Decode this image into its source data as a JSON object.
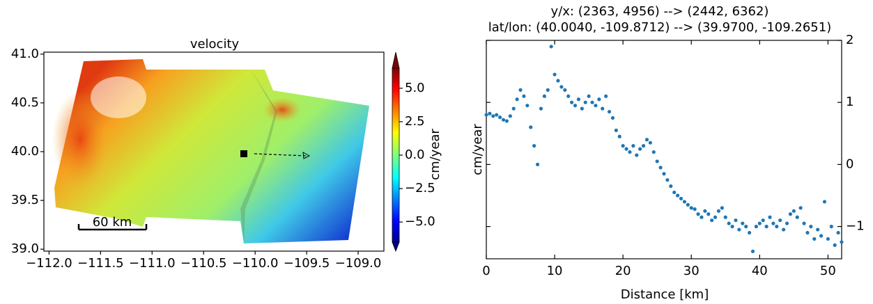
{
  "chart_data": [
    {
      "type": "image",
      "title": "velocity",
      "xlim": [
        -112.05,
        -108.75
      ],
      "ylim": [
        38.98,
        41.02
      ],
      "xticks": [
        {
          "value": -112.0,
          "label": "−112.0"
        },
        {
          "value": -111.5,
          "label": "−111.5"
        },
        {
          "value": -111.0,
          "label": "−111.0"
        },
        {
          "value": -110.5,
          "label": "−110.5"
        },
        {
          "value": -110.0,
          "label": "−110.0"
        },
        {
          "value": -109.5,
          "label": "−109.5"
        },
        {
          "value": -109.0,
          "label": "−109.0"
        }
      ],
      "yticks": [
        {
          "value": 39,
          "label": "39.0"
        },
        39.5,
        {
          "value": 40,
          "label": "40.0"
        },
        40.5,
        {
          "value": 41,
          "label": "41.0"
        }
      ],
      "colorbar": {
        "label": "cm/year",
        "lim": [
          -6.5,
          6.5
        ],
        "ticks": [
          {
            "value": 5,
            "label": "5.0"
          },
          2.5,
          {
            "value": 0,
            "label": "0.0"
          },
          {
            "value": -2.5,
            "label": "−2.5"
          },
          {
            "value": -5,
            "label": "−5.0"
          }
        ]
      },
      "scalebar": "60 km"
    },
    {
      "type": "scatter",
      "title": [
        "y/x: (2363, 4956) --> (2442, 6362)",
        "lat/lon: (40.0040, -109.8712) --> (39.9700, -109.2651)"
      ],
      "xlabel": "Distance [km]",
      "ylabel": "cm/year",
      "xlim": [
        0,
        52
      ],
      "ylim": [
        -1.52,
        2.0
      ],
      "xticks": [
        0,
        10,
        20,
        30,
        40,
        50
      ],
      "yticks": [
        2,
        1,
        0,
        {
          "value": -1,
          "label": "−1"
        }
      ],
      "x": [
        0,
        0.5,
        1,
        1.5,
        2,
        2.5,
        3,
        3.5,
        4,
        4.5,
        5,
        5.5,
        6,
        6.5,
        7,
        7.5,
        8,
        8.5,
        9,
        9.5,
        10,
        10.5,
        11,
        11.5,
        12,
        12.5,
        13,
        13.5,
        14,
        14.5,
        15,
        15.5,
        16,
        16.5,
        17,
        17.5,
        18,
        18.5,
        19,
        19.5,
        20,
        20.5,
        21,
        21.5,
        22,
        22.5,
        23,
        23.5,
        24,
        24.5,
        25,
        25.5,
        26,
        26.5,
        27,
        27.5,
        28,
        28.5,
        29,
        29.5,
        30,
        30.5,
        31,
        31.5,
        32,
        32.5,
        33,
        33.5,
        34,
        34.5,
        35,
        35.5,
        36,
        36.5,
        37,
        37.5,
        38,
        38.5,
        39,
        39.5,
        40,
        40.5,
        41,
        41.5,
        42,
        42.5,
        43,
        43.5,
        44,
        44.5,
        45,
        45.5,
        46,
        46.5,
        47,
        47.5,
        48,
        48.5,
        49,
        49.5,
        50,
        50.5,
        51,
        51.5,
        52
      ],
      "series": [
        {
          "color": "#1f77b4",
          "values": [
            0.8,
            0.82,
            0.78,
            0.8,
            0.76,
            0.72,
            0.7,
            0.78,
            0.9,
            1.05,
            1.2,
            1.1,
            0.95,
            0.6,
            0.3,
            0.0,
            0.9,
            1.1,
            1.2,
            1.9,
            1.45,
            1.35,
            1.25,
            1.2,
            1.1,
            1.0,
            0.95,
            1.05,
            0.9,
            1.0,
            1.1,
            1.0,
            0.95,
            1.05,
            0.9,
            1.1,
            0.85,
            0.75,
            0.55,
            0.45,
            0.3,
            0.25,
            0.2,
            0.3,
            0.15,
            0.25,
            0.3,
            0.4,
            0.35,
            0.2,
            0.05,
            -0.05,
            -0.15,
            -0.25,
            -0.35,
            -0.45,
            -0.5,
            -0.55,
            -0.6,
            -0.65,
            -0.7,
            -0.72,
            -0.8,
            -0.85,
            -0.75,
            -0.8,
            -0.9,
            -0.85,
            -0.75,
            -0.7,
            -0.85,
            -0.95,
            -1.0,
            -0.9,
            -1.05,
            -0.95,
            -1.0,
            -1.1,
            -1.4,
            -1.0,
            -0.95,
            -0.9,
            -1.0,
            -0.85,
            -0.95,
            -1.0,
            -0.9,
            -1.05,
            -0.95,
            -0.8,
            -0.75,
            -0.85,
            -0.7,
            -0.95,
            -1.1,
            -1.0,
            -1.2,
            -1.05,
            -1.15,
            -0.6,
            -1.2,
            -1.0,
            -1.3,
            -1.1,
            -1.25
          ]
        }
      ]
    }
  ]
}
